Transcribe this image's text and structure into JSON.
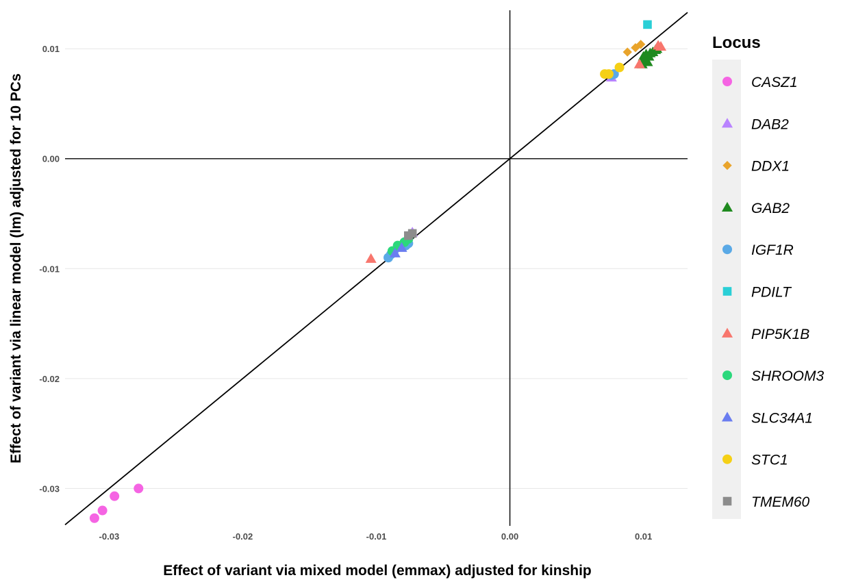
{
  "chart_data": {
    "type": "scatter",
    "title": "",
    "xlabel": "Effect of variant via mixed model (emmax) adjusted for kinship",
    "ylabel": "Effect of variant via linear model (lm) adjusted for 10 PCs",
    "xlim": [
      -0.0333,
      0.0133
    ],
    "ylim": [
      -0.0334,
      0.0135
    ],
    "x_ticks": [
      -0.03,
      -0.02,
      -0.01,
      0.0,
      0.01
    ],
    "x_tick_labels": [
      "-0.03",
      "-0.02",
      "-0.01",
      "0.00",
      "0.01"
    ],
    "y_ticks": [
      -0.03,
      -0.02,
      -0.01,
      0.0,
      0.01
    ],
    "y_tick_labels": [
      "-0.03",
      "-0.02",
      "-0.01",
      "0.00",
      "0.01"
    ],
    "grid": "horizontal",
    "reference_lines": {
      "identity": true,
      "x_zero": true,
      "y_zero": true
    },
    "legend": {
      "title": "Locus",
      "placement": "right"
    },
    "series": [
      {
        "name": "CASZ1",
        "color": "#F564E3",
        "shape": "circle",
        "points": [
          [
            -0.0311,
            -0.0327
          ],
          [
            -0.0305,
            -0.032
          ],
          [
            -0.0296,
            -0.0307
          ],
          [
            -0.0278,
            -0.03
          ]
        ]
      },
      {
        "name": "DAB2",
        "color": "#B983FF",
        "shape": "triangle",
        "points": [
          [
            0.0076,
            0.0074
          ],
          [
            -0.0073,
            -0.0067
          ]
        ]
      },
      {
        "name": "DDX1",
        "color": "#E9A42B",
        "shape": "diamond",
        "points": [
          [
            0.0088,
            0.0097
          ],
          [
            0.0094,
            0.0101
          ],
          [
            0.0098,
            0.0104
          ]
        ]
      },
      {
        "name": "GAB2",
        "color": "#1F8A1F",
        "shape": "triangle",
        "points": [
          [
            0.0099,
            0.0086
          ],
          [
            0.0101,
            0.009
          ],
          [
            0.01,
            0.0093
          ],
          [
            0.0102,
            0.0095
          ],
          [
            0.0104,
            0.0093
          ],
          [
            0.0105,
            0.0096
          ],
          [
            0.0107,
            0.0097
          ],
          [
            0.0109,
            0.0099
          ],
          [
            0.011,
            0.01
          ],
          [
            0.0103,
            0.0088
          ]
        ]
      },
      {
        "name": "IGF1R",
        "color": "#5AA9E6",
        "shape": "circle",
        "points": [
          [
            -0.0091,
            -0.009
          ],
          [
            -0.0089,
            -0.0087
          ],
          [
            -0.0087,
            -0.0085
          ],
          [
            -0.008,
            -0.008
          ],
          [
            -0.0078,
            -0.0079
          ],
          [
            -0.0076,
            -0.0077
          ],
          [
            0.0076,
            0.0076
          ],
          [
            0.0078,
            0.0077
          ]
        ]
      },
      {
        "name": "PDILT",
        "color": "#2ACFD6",
        "shape": "square",
        "points": [
          [
            0.0103,
            0.0122
          ]
        ]
      },
      {
        "name": "PIP5K1B",
        "color": "#F8766D",
        "shape": "triangle",
        "points": [
          [
            -0.0104,
            -0.0091
          ],
          [
            0.0097,
            0.0086
          ],
          [
            0.0111,
            0.0103
          ],
          [
            0.0113,
            0.0102
          ]
        ]
      },
      {
        "name": "SHROOM3",
        "color": "#2BD87C",
        "shape": "circle",
        "points": [
          [
            -0.0088,
            -0.0084
          ],
          [
            -0.0084,
            -0.0079
          ],
          [
            -0.0079,
            -0.0076
          ],
          [
            -0.0076,
            -0.0073
          ]
        ]
      },
      {
        "name": "SLC34A1",
        "color": "#6A7DF0",
        "shape": "triangle",
        "points": [
          [
            -0.0086,
            -0.0086
          ],
          [
            -0.0081,
            -0.0081
          ]
        ]
      },
      {
        "name": "STC1",
        "color": "#F5D016",
        "shape": "circle",
        "points": [
          [
            0.0071,
            0.0077
          ],
          [
            0.0074,
            0.0077
          ],
          [
            0.0082,
            0.0083
          ]
        ]
      },
      {
        "name": "TMEM60",
        "color": "#8C8C8C",
        "shape": "square",
        "points": [
          [
            -0.0076,
            -0.007
          ],
          [
            -0.0073,
            -0.0068
          ]
        ]
      }
    ]
  }
}
